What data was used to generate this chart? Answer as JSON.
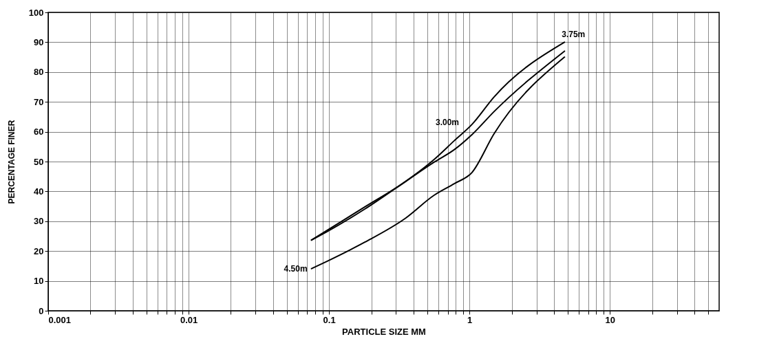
{
  "chart_data": {
    "type": "line",
    "xlabel": "PARTICLE SIZE MM",
    "ylabel": "PERCENTAGE FINER",
    "log": "x",
    "grid": true,
    "marker": "none",
    "line_style": "solid",
    "xlim": [
      0.001,
      60
    ],
    "ylim": [
      0,
      100
    ],
    "xticks": [
      0.001,
      {
        "value": 0.002,
        "label": null
      },
      {
        "value": 0.003,
        "label": null
      },
      {
        "value": 0.004,
        "label": null
      },
      {
        "value": 0.005,
        "label": null
      },
      {
        "value": 0.006,
        "label": null
      },
      {
        "value": 0.007,
        "label": null
      },
      {
        "value": 0.008,
        "label": null
      },
      {
        "value": 0.009,
        "label": null
      },
      0.01,
      {
        "value": 0.02,
        "label": null
      },
      {
        "value": 0.03,
        "label": null
      },
      {
        "value": 0.04,
        "label": null
      },
      {
        "value": 0.05,
        "label": null
      },
      {
        "value": 0.06,
        "label": null
      },
      {
        "value": 0.07,
        "label": null
      },
      {
        "value": 0.08,
        "label": null
      },
      {
        "value": 0.09,
        "label": null
      },
      0.1,
      {
        "value": 0.2,
        "label": null
      },
      {
        "value": 0.3,
        "label": null
      },
      {
        "value": 0.4,
        "label": null
      },
      {
        "value": 0.5,
        "label": null
      },
      {
        "value": 0.6,
        "label": null
      },
      {
        "value": 0.7,
        "label": null
      },
      {
        "value": 0.8,
        "label": null
      },
      {
        "value": 0.9,
        "label": null
      },
      1,
      {
        "value": 2,
        "label": null
      },
      {
        "value": 3,
        "label": null
      },
      {
        "value": 4,
        "label": null
      },
      {
        "value": 5,
        "label": null
      },
      {
        "value": 6,
        "label": null
      },
      {
        "value": 7,
        "label": null
      },
      {
        "value": 8,
        "label": null
      },
      {
        "value": 9,
        "label": null
      },
      10,
      {
        "value": 20,
        "label": null
      },
      {
        "value": 30,
        "label": null
      },
      {
        "value": 40,
        "label": null
      },
      {
        "value": 50,
        "label": null
      }
    ],
    "yticks": [
      0,
      10,
      20,
      30,
      40,
      50,
      60,
      70,
      80,
      90,
      100
    ],
    "series": [
      {
        "color": "#000000",
        "x": [
          0.075,
          0.095,
          0.18,
          0.35,
          0.56,
          0.78,
          1.04,
          1.5,
          4.75
        ],
        "values": [
          23.7,
          26.7,
          34.8,
          43.3,
          50.7,
          57,
          62.4,
          71.7,
          90
        ]
      },
      {
        "color": "#000000",
        "x": [
          0.075,
          0.095,
          0.18,
          0.35,
          0.56,
          0.78,
          1.04,
          1.5,
          4.75
        ],
        "values": [
          23.7,
          26.3,
          34.1,
          43.3,
          49.8,
          54,
          59,
          66.8,
          87
        ]
      },
      {
        "color": "#000000",
        "x": [
          0.075,
          0.095,
          0.18,
          0.35,
          0.56,
          0.78,
          1.04,
          1.5,
          4.75
        ],
        "values": [
          14.1,
          16.4,
          23,
          31,
          38.7,
          42.6,
          46.3,
          59.4,
          85
        ]
      }
    ],
    "annotations": [
      {
        "text": "3.75m",
        "x": 4.75,
        "y": 90
      },
      "3.00m",
      {
        "text": "4.50m",
        "x": 0.075,
        "y": 14.1
      }
    ]
  }
}
